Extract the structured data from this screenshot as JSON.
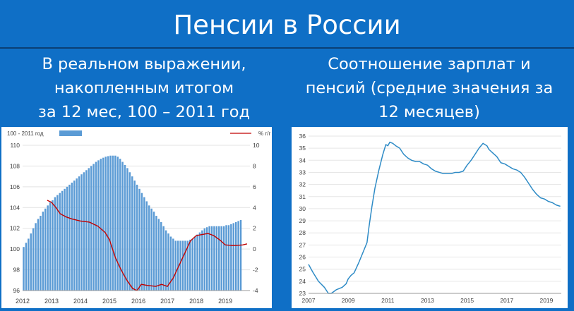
{
  "header": {
    "title": "Пенсии в России",
    "left_subtitle": [
      "В реальном выражении,",
      "накопленным итогом",
      "за 12 мес, 100 – 2011 год"
    ],
    "right_subtitle": [
      "Соотношение зарплат и",
      "пенсий (средние значения за",
      "12 месяцев)"
    ]
  },
  "colors": {
    "background": "#0f6fc6",
    "bar": "#5b9bd5",
    "line_red": "#c00000",
    "line_blue": "#2e8bc6"
  },
  "chart_data": [
    {
      "type": "bar",
      "legend_bar": "100 - 2011 год",
      "legend_line": "% г/г",
      "legend_position": "top",
      "x_ticks": [
        "2012",
        "2013",
        "2014",
        "2015",
        "2016",
        "2017",
        "2018",
        "2019"
      ],
      "ylim": [
        96,
        110
      ],
      "y_ticks": [
        "96",
        "98",
        "100",
        "102",
        "104",
        "106",
        "108",
        "110"
      ],
      "y2lim": [
        -4,
        10
      ],
      "y2_ticks": [
        "-4",
        "-2",
        "0",
        "2",
        "4",
        "6",
        "8",
        "10"
      ],
      "x_start": 2012.0,
      "x_step": 0.0833,
      "series": [
        {
          "kind": "bar",
          "axis": "left",
          "values": [
            100.2,
            100.6,
            101.0,
            101.5,
            102.0,
            102.5,
            102.9,
            103.2,
            103.6,
            103.9,
            104.2,
            104.5,
            104.7,
            105.0,
            105.2,
            105.4,
            105.6,
            105.8,
            106.0,
            106.2,
            106.4,
            106.6,
            106.8,
            107.0,
            107.2,
            107.4,
            107.6,
            107.8,
            108.0,
            108.2,
            108.4,
            108.55,
            108.7,
            108.8,
            108.9,
            108.95,
            109.0,
            109.0,
            109.0,
            108.9,
            108.7,
            108.4,
            108.1,
            107.8,
            107.4,
            107.0,
            106.6,
            106.2,
            105.8,
            105.4,
            105.0,
            104.6,
            104.2,
            103.9,
            103.6,
            103.2,
            102.9,
            102.6,
            102.2,
            101.8,
            101.5,
            101.2,
            101.0,
            100.8,
            100.8,
            100.8,
            100.8,
            100.8,
            100.8,
            100.9,
            101.0,
            101.2,
            101.4,
            101.6,
            101.8,
            102.0,
            102.1,
            102.2,
            102.2,
            102.2,
            102.2,
            102.2,
            102.2,
            102.2,
            102.3,
            102.3,
            102.4,
            102.5,
            102.6,
            102.7,
            102.8
          ]
        },
        {
          "kind": "line",
          "axis": "right",
          "x": [
            2012.85,
            2013.0,
            2013.15,
            2013.3,
            2013.5,
            2013.7,
            2014.0,
            2014.3,
            2014.6,
            2014.85,
            2015.0,
            2015.2,
            2015.4,
            2015.6,
            2015.8,
            2015.95,
            2016.1,
            2016.3,
            2016.6,
            2016.8,
            2017.0,
            2017.2,
            2017.4,
            2017.6,
            2017.8,
            2018.0,
            2018.2,
            2018.4,
            2018.6,
            2018.8,
            2019.0,
            2019.2,
            2019.4,
            2019.6,
            2019.75
          ],
          "values": [
            4.7,
            4.5,
            4.0,
            3.4,
            3.1,
            2.9,
            2.7,
            2.6,
            2.2,
            1.6,
            0.9,
            -0.8,
            -2.0,
            -3.0,
            -3.8,
            -4.0,
            -3.4,
            -3.5,
            -3.6,
            -3.4,
            -3.6,
            -2.8,
            -1.6,
            -0.4,
            0.8,
            1.3,
            1.4,
            1.5,
            1.3,
            0.9,
            0.4,
            0.35,
            0.35,
            0.4,
            0.5
          ]
        }
      ]
    },
    {
      "type": "line",
      "x_ticks": [
        "2007",
        "2009",
        "2011",
        "2013",
        "2015",
        "2017",
        "2019"
      ],
      "ylim": [
        23,
        36
      ],
      "y_ticks": [
        "23",
        "24",
        "25",
        "26",
        "27",
        "28",
        "29",
        "30",
        "31",
        "32",
        "33",
        "34",
        "35",
        "36"
      ],
      "series": [
        {
          "x": [
            2007.0,
            2007.2,
            2007.5,
            2007.8,
            2008.0,
            2008.15,
            2008.4,
            2008.7,
            2008.9,
            2009.0,
            2009.15,
            2009.3,
            2009.55,
            2009.8,
            2009.95,
            2010.05,
            2010.2,
            2010.35,
            2010.55,
            2010.75,
            2010.9,
            2011.0,
            2011.1,
            2011.25,
            2011.4,
            2011.6,
            2011.8,
            2012.0,
            2012.2,
            2012.4,
            2012.6,
            2012.8,
            2013.0,
            2013.2,
            2013.4,
            2013.6,
            2013.8,
            2014.0,
            2014.2,
            2014.4,
            2014.6,
            2014.8,
            2015.0,
            2015.2,
            2015.4,
            2015.6,
            2015.8,
            2016.0,
            2016.1,
            2016.3,
            2016.5,
            2016.7,
            2016.9,
            2017.1,
            2017.3,
            2017.5,
            2017.7,
            2017.9,
            2018.1,
            2018.3,
            2018.5,
            2018.7,
            2018.9,
            2019.1,
            2019.3,
            2019.5,
            2019.7
          ],
          "values": [
            25.4,
            24.8,
            24.0,
            23.5,
            23.0,
            23.0,
            23.3,
            23.5,
            23.8,
            24.2,
            24.5,
            24.7,
            25.6,
            26.6,
            27.2,
            28.5,
            30.2,
            31.7,
            33.2,
            34.5,
            35.3,
            35.2,
            35.5,
            35.4,
            35.2,
            35.0,
            34.5,
            34.2,
            34.0,
            33.9,
            33.9,
            33.7,
            33.6,
            33.3,
            33.1,
            33.0,
            32.9,
            32.9,
            32.9,
            33.0,
            33.0,
            33.1,
            33.6,
            34.0,
            34.5,
            35.0,
            35.4,
            35.2,
            34.9,
            34.6,
            34.3,
            33.8,
            33.7,
            33.5,
            33.3,
            33.2,
            33.0,
            32.6,
            32.1,
            31.6,
            31.2,
            30.9,
            30.8,
            30.6,
            30.5,
            30.3,
            30.2
          ]
        }
      ]
    }
  ]
}
